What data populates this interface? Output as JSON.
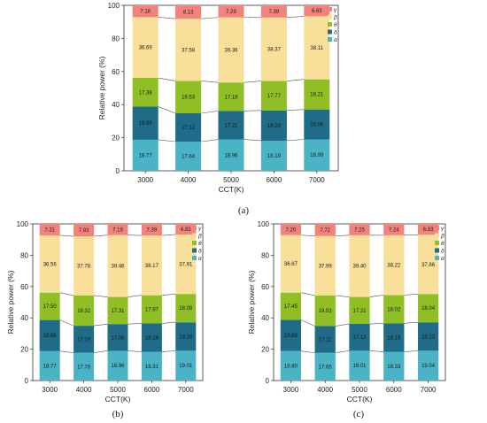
{
  "chart_data": [
    {
      "type": "bar",
      "stacked": true,
      "panel_label": "(a)",
      "xlabel": "CCT(K)",
      "ylabel": "Relative power (%)",
      "ylim": [
        0,
        100
      ],
      "yticks": [
        0,
        20,
        40,
        60,
        80,
        100
      ],
      "categories": [
        "3000",
        "4000",
        "5000",
        "6000",
        "7000"
      ],
      "series": [
        {
          "name": "α",
          "values": [
            18.77,
            17.64,
            18.96,
            18.19,
            18.99
          ]
        },
        {
          "name": "δ",
          "values": [
            19.98,
            17.12,
            17.21,
            18.28,
            18.06
          ]
        },
        {
          "name": "θ",
          "values": [
            17.38,
            19.53,
            17.18,
            17.77,
            18.21
          ]
        },
        {
          "name": "β",
          "values": [
            36.69,
            37.58,
            39.36,
            38.37,
            38.11
          ]
        },
        {
          "name": "γ",
          "values": [
            7.18,
            8.13,
            7.29,
            7.39,
            6.63
          ]
        }
      ],
      "legend_position": "right"
    },
    {
      "type": "bar",
      "stacked": true,
      "panel_label": "(b)",
      "xlabel": "CCT(K)",
      "ylabel": "Relative power (%)",
      "ylim": [
        0,
        100
      ],
      "yticks": [
        0,
        20,
        40,
        60,
        80,
        100
      ],
      "categories": [
        "3000",
        "4000",
        "5000",
        "6000",
        "7000"
      ],
      "series": [
        {
          "name": "α",
          "values": [
            18.77,
            17.78,
            18.96,
            18.31,
            19.01
          ]
        },
        {
          "name": "δ",
          "values": [
            19.86,
            17.19,
            17.08,
            18.16,
            18.16
          ]
        },
        {
          "name": "θ",
          "values": [
            17.5,
            19.32,
            17.31,
            17.97,
            18.09
          ]
        },
        {
          "name": "β",
          "values": [
            36.56,
            37.78,
            39.46,
            38.17,
            37.91
          ]
        },
        {
          "name": "γ",
          "values": [
            7.31,
            7.93,
            7.19,
            7.39,
            6.83
          ]
        }
      ],
      "legend_position": "right"
    },
    {
      "type": "bar",
      "stacked": true,
      "panel_label": "(c)",
      "xlabel": "CCT(K)",
      "ylabel": "Relative power (%)",
      "ylim": [
        0,
        100
      ],
      "yticks": [
        0,
        20,
        40,
        60,
        80,
        100
      ],
      "categories": [
        "3000",
        "4000",
        "5000",
        "6000",
        "7000"
      ],
      "series": [
        {
          "name": "α",
          "values": [
            18.8,
            17.65,
            19.01,
            18.33,
            19.04
          ]
        },
        {
          "name": "δ",
          "values": [
            19.88,
            17.11,
            17.13,
            18.19,
            18.13
          ]
        },
        {
          "name": "θ",
          "values": [
            17.45,
            19.53,
            17.21,
            18.02,
            18.04
          ]
        },
        {
          "name": "β",
          "values": [
            36.67,
            37.99,
            39.4,
            38.22,
            37.86
          ]
        },
        {
          "name": "γ",
          "values": [
            7.2,
            7.72,
            7.25,
            7.24,
            6.93
          ]
        }
      ],
      "legend_position": "right"
    }
  ],
  "colors": {
    "α": "#4bb3c6",
    "δ": "#1f6b88",
    "θ": "#8fbf24",
    "β": "#f8df9a",
    "γ": "#f2837a"
  }
}
